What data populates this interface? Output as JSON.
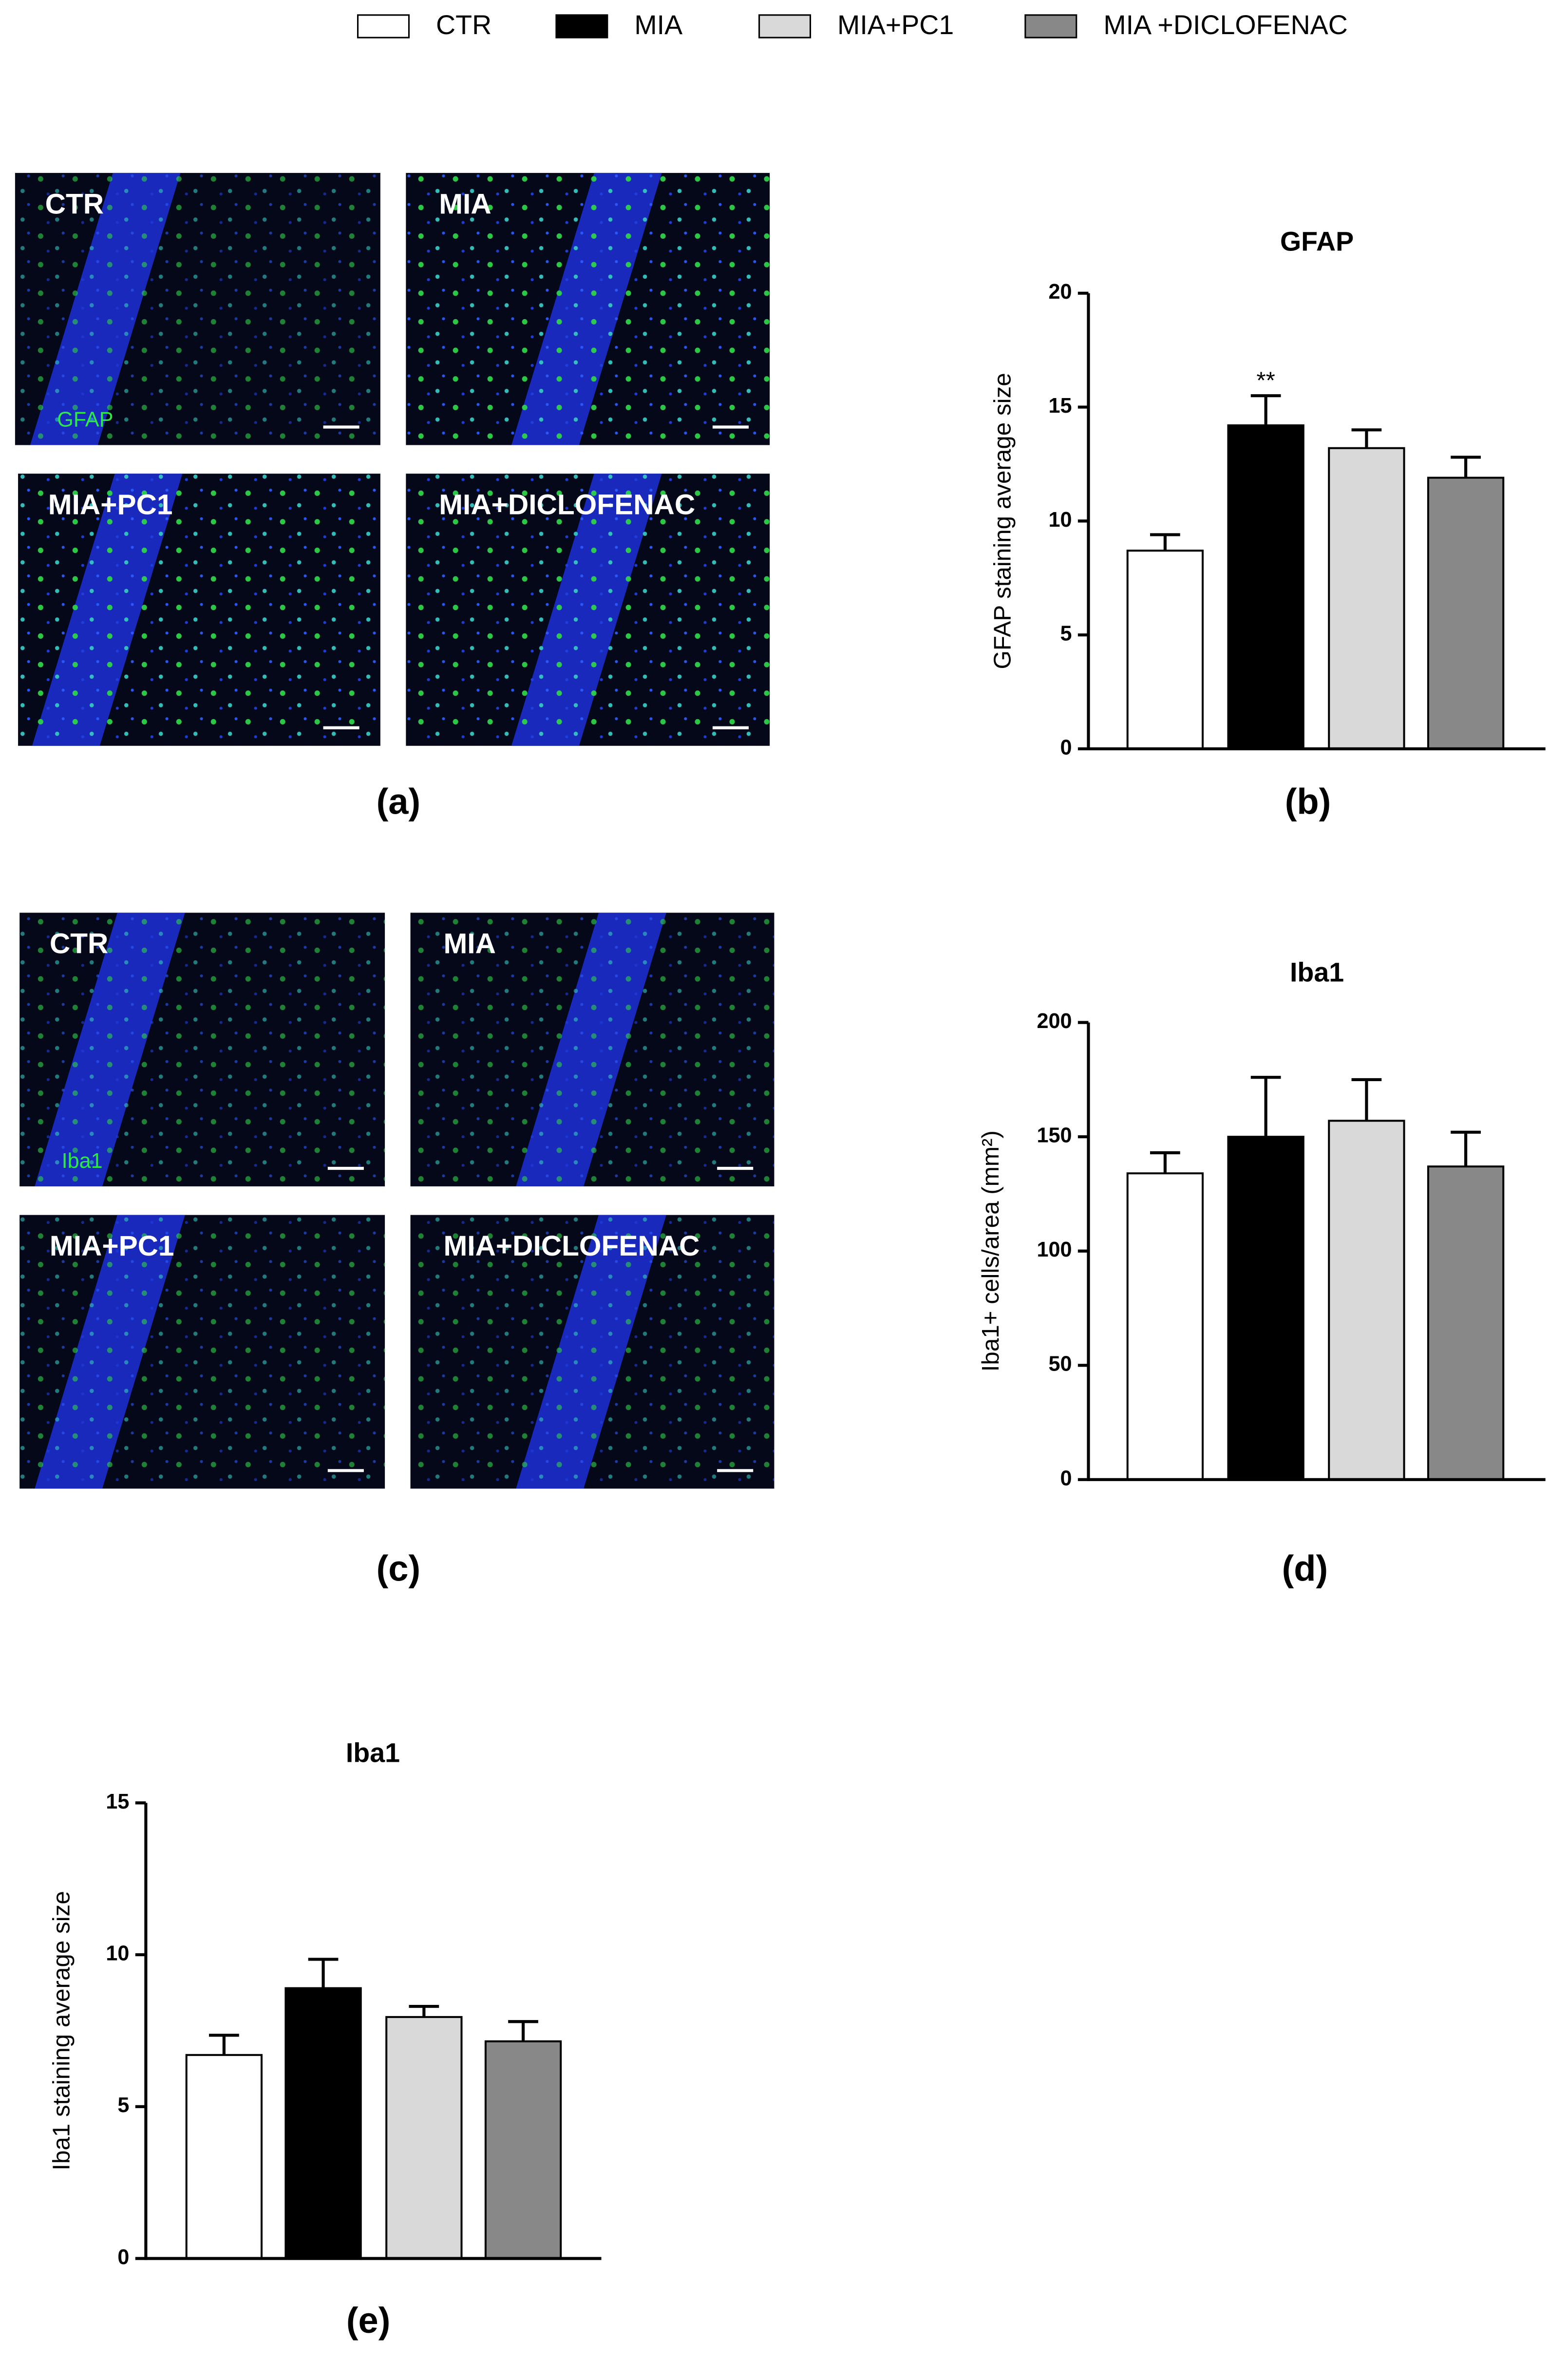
{
  "legend": [
    {
      "name": "CTR",
      "color": "#ffffff"
    },
    {
      "name": "MIA",
      "color": "#000000"
    },
    {
      "name": "MIA+PC1",
      "color": "#d9d9d9"
    },
    {
      "name": "MIA +DICLOFENAC",
      "color": "#888888"
    }
  ],
  "micrographs": [
    {
      "labels": [
        "CTR",
        "MIA",
        "MIA+PC1",
        "MIA+DICLOFENAC"
      ],
      "stain": "GFAP",
      "panel_label": "(a)"
    },
    {
      "labels": [
        "CTR",
        "MIA",
        "MIA+PC1",
        "MIA+DICLOFENAC"
      ],
      "stain": "Iba1",
      "panel_label": "(c)"
    }
  ],
  "chart_data": [
    {
      "type": "bar",
      "title": "GFAP",
      "y_label": "GFAP staining average size",
      "panel_label": "(b)",
      "values": [
        8.7,
        14.2,
        13.2,
        11.9
      ],
      "errors": [
        0.7,
        1.3,
        0.8,
        0.9
      ],
      "annotations": [
        null,
        "**",
        null,
        null
      ],
      "ylim": [
        0,
        20
      ],
      "yticks": [
        0,
        5,
        10,
        15,
        20
      ]
    },
    {
      "type": "bar",
      "title": "Iba1",
      "y_label": "Iba1+ cells/area (mm²)",
      "panel_label": "(d)",
      "values": [
        134,
        150,
        157,
        137
      ],
      "errors": [
        9,
        26,
        18,
        15
      ],
      "ylim": [
        0,
        200
      ],
      "yticks": [
        0,
        50,
        100,
        150,
        200
      ]
    },
    {
      "type": "bar",
      "title": "Iba1",
      "y_label": "Iba1 staining average size",
      "panel_label": "(e)",
      "values": [
        6.7,
        8.9,
        7.95,
        7.15
      ],
      "errors": [
        0.65,
        0.95,
        0.35,
        0.65
      ],
      "ylim": [
        0,
        15
      ],
      "yticks": [
        0,
        5,
        10,
        15
      ]
    }
  ]
}
